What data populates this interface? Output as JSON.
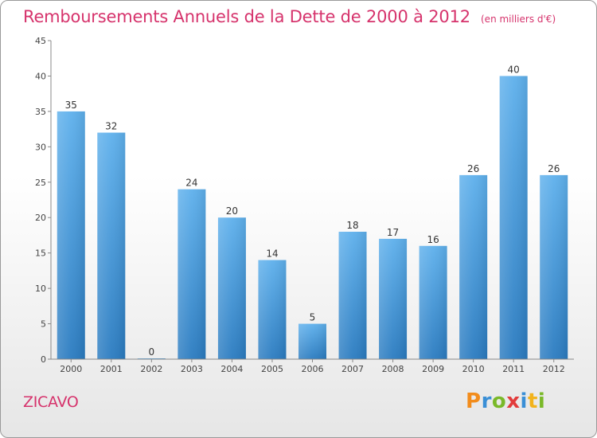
{
  "chart_data": {
    "type": "bar",
    "title": "Remboursements Annuels de la Dette de 2000 à 2012",
    "unit_label": "(en milliers d'€)",
    "categories": [
      "2000",
      "2001",
      "2002",
      "2003",
      "2004",
      "2005",
      "2006",
      "2007",
      "2008",
      "2009",
      "2010",
      "2011",
      "2012"
    ],
    "values": [
      35,
      32,
      0,
      24,
      20,
      14,
      5,
      18,
      17,
      16,
      26,
      40,
      26
    ],
    "yticks": [
      "0",
      "5",
      "10",
      "15",
      "20",
      "25",
      "30",
      "35",
      "40",
      "45"
    ],
    "ylim": [
      0,
      45
    ],
    "grid": false,
    "xlabel": "",
    "ylabel": "",
    "bar_color": "#4a9ee0"
  },
  "footer": {
    "commune": "ZICAVO",
    "brand_letters": [
      "P",
      "r",
      "o",
      "x",
      "i",
      "t",
      "i"
    ],
    "brand_colors": [
      "#f28c1c",
      "#3a8fd6",
      "#7ab929",
      "#e23b3b",
      "#3a8fd6",
      "#f2b31c",
      "#7ab929"
    ]
  }
}
